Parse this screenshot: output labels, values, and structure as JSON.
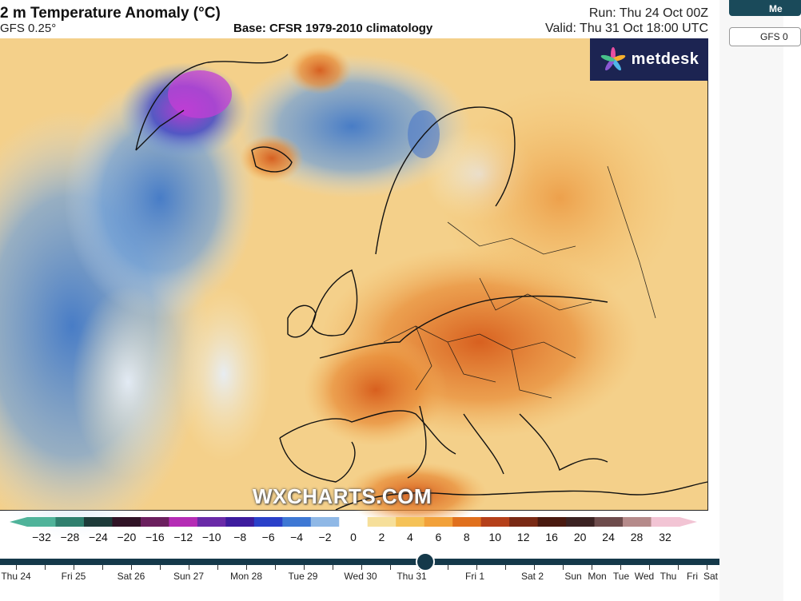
{
  "header": {
    "title": "2 m Temperature Anomaly (°C)",
    "model": "GFS 0.25°",
    "base": "Base: CFSR 1979-2010 climatology",
    "run": "Run: Thu 24 Oct 00Z",
    "valid": "Valid: Thu 31 Oct 18:00 UTC"
  },
  "logo": {
    "text": "metdesk",
    "icon": "metdesk-star-icon",
    "bg": "#1c2452"
  },
  "watermark": "WXCHARTS.COM",
  "colorbar": {
    "ticks": [
      "−32",
      "−28",
      "−24",
      "−20",
      "−16",
      "−12",
      "−10",
      "−8",
      "−6",
      "−4",
      "−2",
      "0",
      "2",
      "4",
      "6",
      "8",
      "10",
      "12",
      "16",
      "20",
      "24",
      "28",
      "32"
    ],
    "colors": [
      "#4fb39a",
      "#2e7f6e",
      "#1d3b3a",
      "#301326",
      "#6b1f5e",
      "#b52cb5",
      "#6a2aa8",
      "#3d1c9e",
      "#2a40c9",
      "#3e78d4",
      "#8fb8e6",
      "#ffffff",
      "#f6df9a",
      "#f5c257",
      "#f2a13a",
      "#e0701d",
      "#b5401a",
      "#7a2a15",
      "#4a1a10",
      "#3b2222",
      "#6e4c4c",
      "#b58a8a",
      "#f2c4d4"
    ]
  },
  "timeline": {
    "days": [
      "Thu 24",
      "Fri 25",
      "Sat 26",
      "Sun 27",
      "Mon 28",
      "Tue 29",
      "Wed 30",
      "Thu 31",
      "Fri 1",
      "Sat 2",
      "Sun",
      "Mon",
      "Tue",
      "Wed",
      "Thu",
      "Fri",
      "Sat"
    ],
    "selected": "Thu 31",
    "color": "#15394a"
  },
  "sidebar": {
    "button1": "Me",
    "button2": "GFS 0"
  }
}
